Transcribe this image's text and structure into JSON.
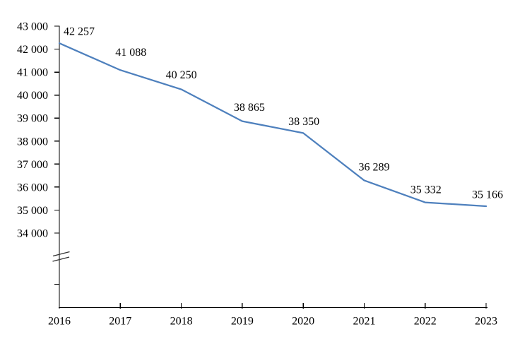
{
  "chart": {
    "background_color": "#ffffff"
  },
  "chart_data": {
    "type": "line",
    "categories": [
      "2016",
      "2017",
      "2018",
      "2019",
      "2020",
      "2021",
      "2022",
      "2023"
    ],
    "values": [
      42257,
      41088,
      40250,
      38865,
      38350,
      36289,
      35332,
      35166
    ],
    "point_labels": [
      "42 257",
      "41 088",
      "40 250",
      "38 865",
      "38 350",
      "36 289",
      "35 332",
      "35 166"
    ],
    "y_tick_labels": [
      "43 000",
      "42 000",
      "41 000",
      "40 000",
      "39 000",
      "38 000",
      "37 000",
      "36 000",
      "35 000",
      "34 000"
    ],
    "y_tick_values": [
      43000,
      42000,
      41000,
      40000,
      39000,
      38000,
      37000,
      36000,
      35000,
      34000
    ],
    "ylim": [
      34000,
      43000
    ],
    "axis_break": true,
    "grid": false,
    "legend": false,
    "series_color": "#4E80BD",
    "axis_color": "#000000",
    "break_color": "#333333",
    "label_color": "#000000"
  }
}
